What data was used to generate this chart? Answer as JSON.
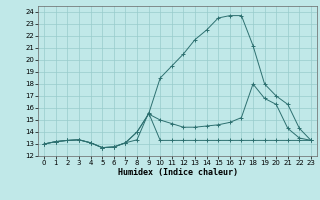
{
  "xlabel": "Humidex (Indice chaleur)",
  "bg_color": "#c0e8e8",
  "grid_color": "#98cccc",
  "line_color": "#2d7070",
  "xlim": [
    -0.5,
    23.5
  ],
  "ylim": [
    12,
    24.5
  ],
  "xticks": [
    0,
    1,
    2,
    3,
    4,
    5,
    6,
    7,
    8,
    9,
    10,
    11,
    12,
    13,
    14,
    15,
    16,
    17,
    18,
    19,
    20,
    21,
    22,
    23
  ],
  "yticks": [
    12,
    13,
    14,
    15,
    16,
    17,
    18,
    19,
    20,
    21,
    22,
    23,
    24
  ],
  "lines": [
    {
      "x": [
        0,
        1,
        2,
        3,
        4,
        5,
        6,
        7,
        8,
        9,
        10,
        11,
        12,
        13,
        14,
        15,
        16,
        17,
        18,
        19,
        20,
        21,
        22,
        23
      ],
      "y": [
        13.0,
        13.2,
        13.3,
        13.35,
        13.1,
        12.7,
        12.75,
        13.1,
        13.35,
        15.6,
        13.3,
        13.3,
        13.3,
        13.3,
        13.3,
        13.3,
        13.3,
        13.3,
        13.3,
        13.3,
        13.3,
        13.3,
        13.3,
        13.3
      ]
    },
    {
      "x": [
        0,
        1,
        2,
        3,
        4,
        5,
        6,
        7,
        8,
        9,
        10,
        11,
        12,
        13,
        14,
        15,
        16,
        17,
        18,
        19,
        20,
        21,
        22,
        23
      ],
      "y": [
        13.0,
        13.2,
        13.3,
        13.35,
        13.1,
        12.7,
        12.75,
        13.1,
        14.0,
        15.5,
        15.0,
        14.7,
        14.4,
        14.4,
        14.5,
        14.6,
        14.8,
        15.2,
        18.0,
        16.8,
        16.3,
        14.3,
        13.5,
        13.3
      ]
    },
    {
      "x": [
        0,
        1,
        2,
        3,
        4,
        5,
        6,
        7,
        8,
        9,
        10,
        11,
        12,
        13,
        14,
        15,
        16,
        17,
        18,
        19,
        20,
        21,
        22,
        23
      ],
      "y": [
        13.0,
        13.2,
        13.3,
        13.35,
        13.1,
        12.7,
        12.75,
        13.1,
        14.0,
        15.5,
        18.5,
        19.5,
        20.5,
        21.7,
        22.5,
        23.5,
        23.7,
        23.7,
        21.2,
        18.0,
        17.0,
        16.3,
        14.3,
        13.3
      ]
    }
  ]
}
